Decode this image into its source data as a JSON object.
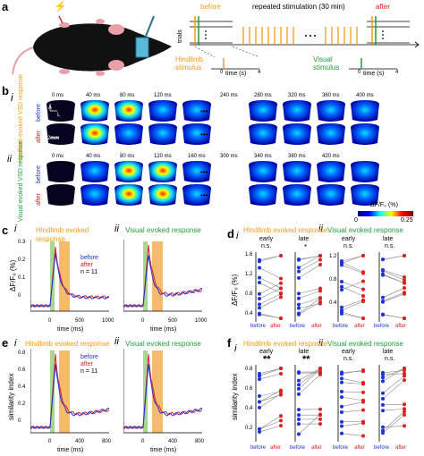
{
  "panel_a": {
    "label": "a",
    "before": "before",
    "after": "after",
    "repeated": "repeated stimulation (30 min)",
    "trials": "trials",
    "hindlimb_stimulus": "Hindlimb stimulus",
    "visual_stimulus": "Visual stimulus",
    "time_axis": "time (s)",
    "tick0": "0",
    "tick4": "4",
    "lightning": "⚡"
  },
  "panel_b": {
    "label": "b",
    "sub_i": "i",
    "sub_ii": "ii",
    "hind_times": [
      "0 ms",
      "40 ms",
      "80 ms",
      "120 ms",
      "240 ms",
      "280 ms",
      "320 ms",
      "360 ms",
      "400 ms"
    ],
    "vis_times": [
      "0 ms",
      "40 ms",
      "80 ms",
      "120 ms",
      "160 ms",
      "300 ms",
      "340 ms",
      "380 ms",
      "420 ms"
    ],
    "hind_title": "Hindlimb evoked VSD response",
    "vis_title": "Visual evoked VSD response",
    "before": "before",
    "after": "after",
    "scale": "2mm",
    "colorbar_label": "ΔF/F₀ (%)",
    "cb_min": "0",
    "cb_max": "0.25",
    "ellipsis": "•••",
    "compass_a": "A",
    "compass_l": "L"
  },
  "panel_c": {
    "label": "c",
    "sub_i": "i",
    "sub_ii": "ii",
    "title_i": "Hindlimb evoked response",
    "title_ii": "Visual evoked response",
    "ylabel": "ΔF/F₀ (%)",
    "xlabel": "time (ms)",
    "legend_before": "before",
    "legend_after": "after",
    "n": "n = 11",
    "yticks": [
      "0.3",
      "0.2",
      "0.1",
      "0"
    ],
    "xticks": [
      "0",
      "500",
      "1000"
    ]
  },
  "panel_d": {
    "label": "d",
    "sub_i": "i",
    "sub_ii": "ii",
    "title_i": "Hindlimb evoked response",
    "title_ii": "Visual evoked response",
    "early": "early",
    "late": "late",
    "sig_1": "n.s.",
    "sig_2": "*",
    "sig_3": "n.s.",
    "sig_4": "n.s.",
    "ylabel": "ΔF/F₀ (%)",
    "yticks_i": [
      "1.6",
      "1.2",
      "0.8",
      "0.4"
    ],
    "yticks_ii": [
      "1.2",
      "0.8",
      "0.4"
    ],
    "before": "before",
    "after": "after"
  },
  "panel_e": {
    "label": "e",
    "sub_i": "i",
    "sub_ii": "ii",
    "title_i": "Hindlimb evoked response",
    "title_ii": "Visual evoked response",
    "ylabel": "similarity index",
    "xlabel": "time (ms)",
    "legend_before": "before",
    "legend_after": "after",
    "n": "n = 11",
    "yticks": [
      "0.8",
      "0.6",
      "0.4",
      "0.2",
      "0"
    ],
    "xticks": [
      "0",
      "400",
      "800"
    ]
  },
  "panel_f": {
    "label": "f",
    "sub_i": "i",
    "sub_ii": "ii",
    "title_i": "Hindlimb evoked response",
    "title_ii": "Visual evoked response",
    "early": "early",
    "late": "late",
    "sig_1": "**",
    "sig_2": "**",
    "sig_3": "n.s.",
    "sig_4": "n.s.",
    "ylabel": "similarity index",
    "yticks": [
      "0.8",
      "0.6",
      "0.4",
      "0.2"
    ],
    "before": "before",
    "after": "after"
  },
  "colors": {
    "orange": "#f39c12",
    "green": "#1e9e3a",
    "blue": "#1f33d6",
    "red": "#e02020"
  }
}
